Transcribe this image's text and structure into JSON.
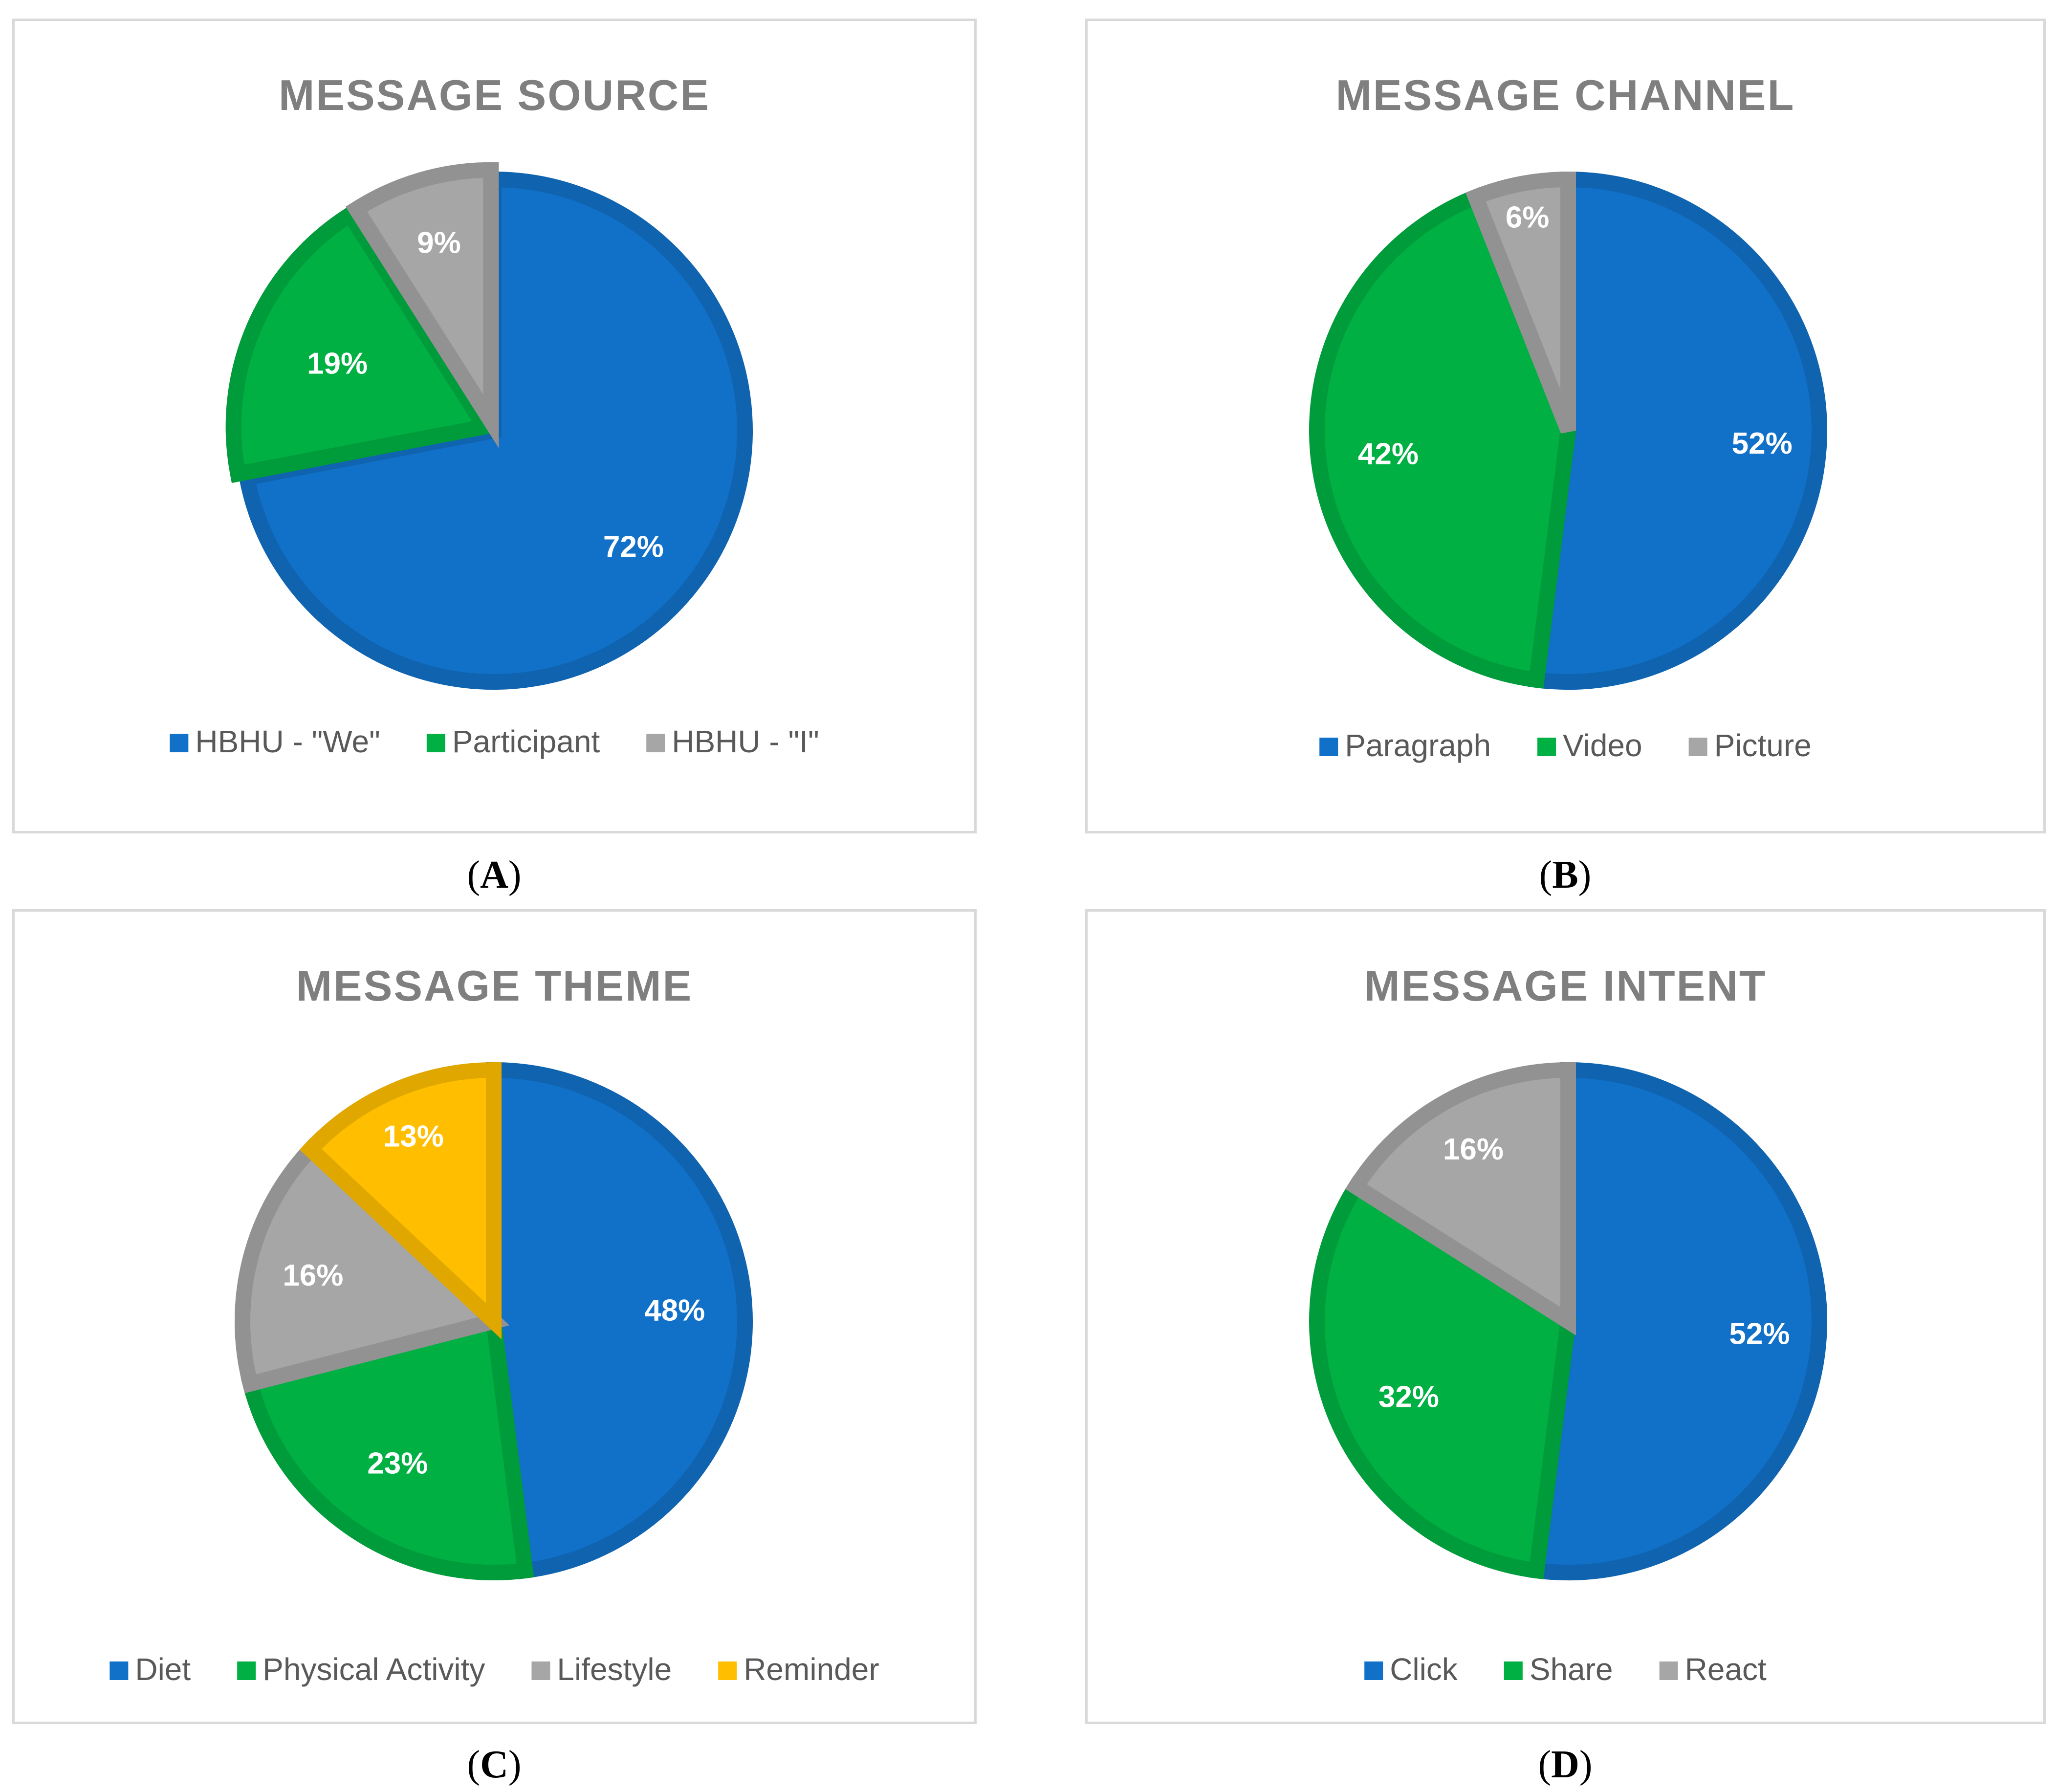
{
  "chart_data": [
    {
      "type": "pie",
      "panel": "A",
      "title": "MESSAGE SOURCE",
      "categories": [
        "HBHU - \"We\"",
        "Participant",
        "HBHU - \"I\""
      ],
      "values": [
        72,
        19,
        9
      ],
      "labels": [
        "72%",
        "19%",
        "9%"
      ],
      "colors": [
        "#1170C7",
        "#00B043",
        "#A6A6A6"
      ],
      "exploded": [
        false,
        false,
        false
      ],
      "legend": "bottom"
    },
    {
      "type": "pie",
      "panel": "B",
      "title": "MESSAGE CHANNEL",
      "categories": [
        "Paragraph",
        "Video",
        "Picture"
      ],
      "values": [
        52,
        42,
        6
      ],
      "labels": [
        "52%",
        "42%",
        "6%"
      ],
      "colors": [
        "#1170C7",
        "#00B043",
        "#A6A6A6"
      ],
      "legend": "bottom"
    },
    {
      "type": "pie",
      "panel": "C",
      "title": "MESSAGE THEME",
      "categories": [
        "Diet",
        "Physical Activity",
        "Lifestyle",
        "Reminder"
      ],
      "values": [
        48,
        23,
        16,
        13
      ],
      "labels": [
        "48%",
        "23%",
        "16%",
        "13%"
      ],
      "colors": [
        "#1170C7",
        "#00B043",
        "#A6A6A6",
        "#FFBE00"
      ],
      "legend": "bottom"
    },
    {
      "type": "pie",
      "panel": "D",
      "title": "MESSAGE INTENT",
      "categories": [
        "Click",
        "Share",
        "React"
      ],
      "values": [
        52,
        32,
        16
      ],
      "labels": [
        "52%",
        "32%",
        "16%"
      ],
      "colors": [
        "#1170C7",
        "#00B043",
        "#A6A6A6"
      ],
      "legend": "bottom"
    }
  ],
  "captions": [
    "A",
    "B",
    "C",
    "D"
  ],
  "colors": {
    "title": "#7F7F7F",
    "legend_text": "#595959",
    "label_text": "#FFFFFF",
    "panel_border": "#D9D9D9"
  }
}
